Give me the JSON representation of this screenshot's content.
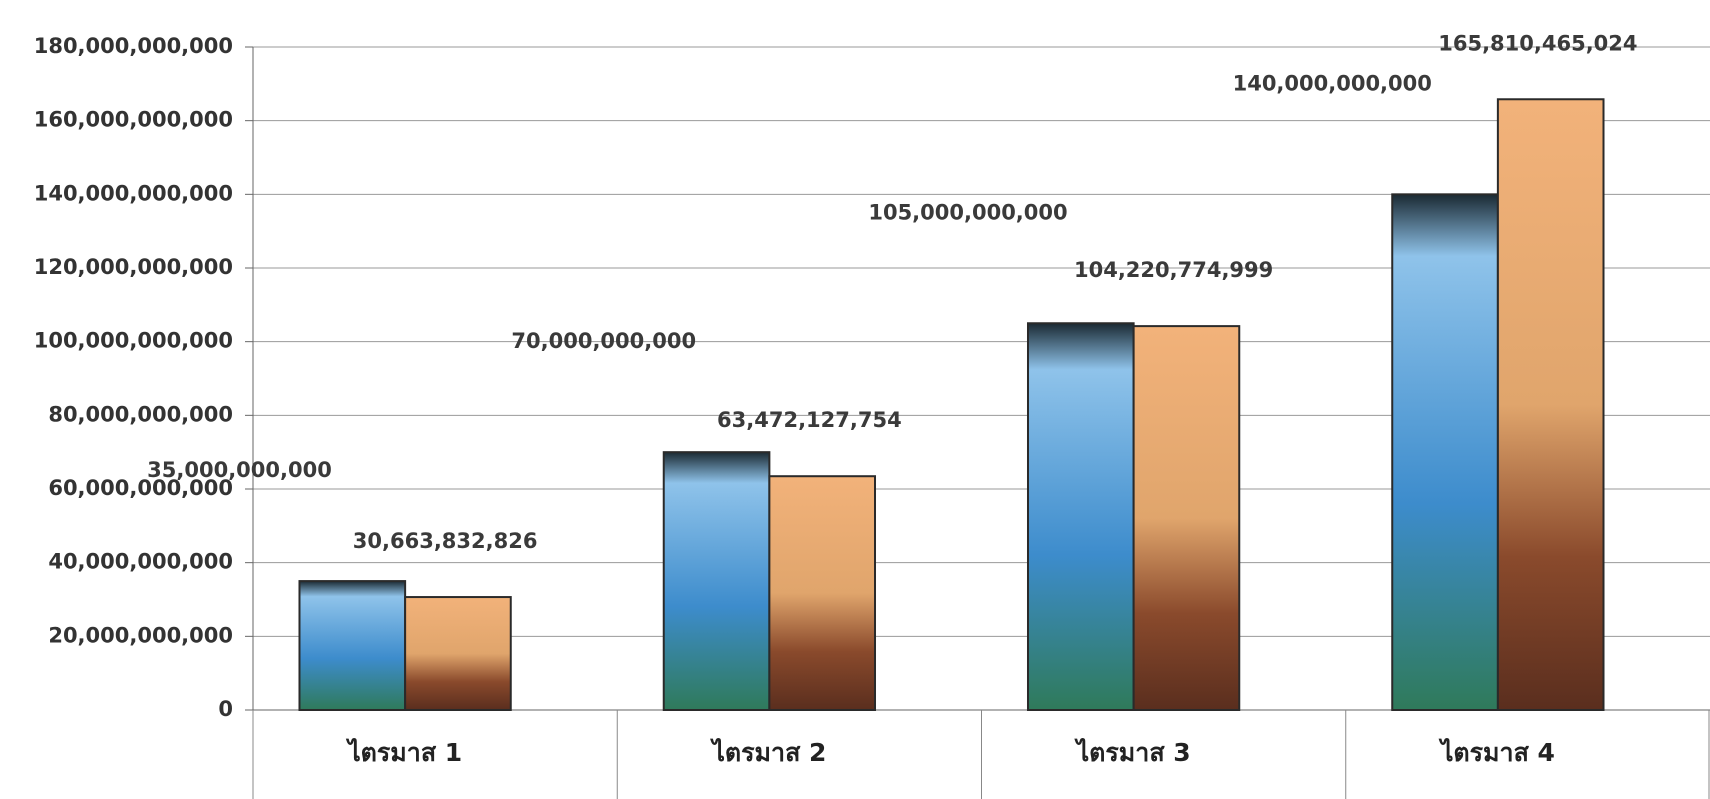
{
  "chart_data": {
    "type": "bar",
    "categories": [
      "ไตรมาส 1",
      "ไตรมาส 2",
      "ไตรมาส 3",
      "ไตรมาส 4"
    ],
    "series": [
      {
        "color": "#4a8fc9",
        "values": [
          35000000000,
          70000000000,
          105000000000,
          140000000000
        ],
        "value_labels": [
          "35,000,000,000",
          "70,000,000,000",
          "105,000,000,000",
          "140,000,000,000"
        ]
      },
      {
        "color": "#d99a5e",
        "values": [
          30663832826,
          63472127754,
          104220774999,
          165810465024
        ],
        "value_labels": [
          "30,663,832,826",
          "63,472,127,754",
          "104,220,774,999",
          "165,810,465,024"
        ]
      }
    ],
    "ylim": [
      0,
      180000000000
    ],
    "yticks": [
      0,
      {
        "value": 20000000000,
        "label": "20,000,000,000"
      },
      {
        "value": 40000000000,
        "label": "40,000,000,000"
      },
      {
        "value": 60000000000,
        "label": "60,000,000,000"
      },
      {
        "value": 80000000000,
        "label": "80,000,000,000"
      },
      {
        "value": 100000000000,
        "label": "100,000,000,000"
      },
      {
        "value": 120000000000,
        "label": "120,000,000,000"
      },
      {
        "value": 140000000000,
        "label": "140,000,000,000"
      },
      {
        "value": 160000000000,
        "label": "160,000,000,000"
      },
      {
        "value": 180000000000,
        "label": "180,000,000,000"
      }
    ],
    "grid": true
  }
}
